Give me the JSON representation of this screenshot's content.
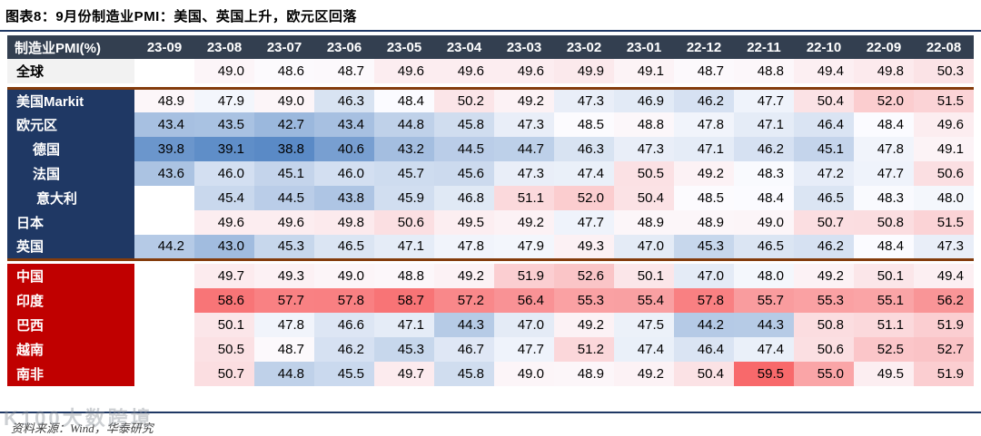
{
  "title": "图表8：9月份制造业PMI：美国、英国上升，欧元区回落",
  "footer": {
    "source_text": "资料来源：Wind，华泰研究",
    "watermark": "K100大数跨境"
  },
  "colors": {
    "header_bg": "#333F50",
    "developed_label_bg": "#1F3864",
    "emerging_label_bg": "#C00000",
    "global_label_bg": "#F2F2F2",
    "separator_line": "#843C0C",
    "rule_line": "#1F3864",
    "scale_low": "#5A8AC6",
    "scale_mid": "#FCFCFF",
    "scale_high": "#F8696B"
  },
  "chart_data": {
    "type": "heatmap",
    "title": "图表8：9月份制造业PMI：美国、英国上升，欧元区回落",
    "corner_label": "制造业PMI(%)",
    "columns": [
      "23-09",
      "23-08",
      "23-07",
      "23-06",
      "23-05",
      "23-04",
      "23-03",
      "23-02",
      "23-01",
      "22-12",
      "22-11",
      "22-10",
      "22-09",
      "22-08"
    ],
    "color_scale": {
      "min": 38.8,
      "mid": 48.45,
      "max": 59.5,
      "low": "#5A8AC6",
      "mid_color": "#FCFCFF",
      "high": "#F8696B"
    },
    "rows": [
      {
        "label": "全球",
        "group": "global",
        "indent": 0,
        "values": [
          null,
          49.0,
          48.6,
          48.7,
          49.6,
          49.6,
          49.6,
          49.9,
          49.1,
          48.7,
          48.8,
          49.4,
          49.8,
          50.3
        ]
      },
      {
        "label": "美国Markit",
        "group": "developed",
        "indent": 0,
        "values": [
          48.9,
          47.9,
          49.0,
          46.3,
          48.4,
          50.2,
          49.2,
          47.3,
          46.9,
          46.2,
          47.7,
          50.4,
          52.0,
          51.5
        ]
      },
      {
        "label": "欧元区",
        "group": "developed",
        "indent": 0,
        "values": [
          43.4,
          43.5,
          42.7,
          43.4,
          44.8,
          45.8,
          47.3,
          48.5,
          48.8,
          47.8,
          47.1,
          46.4,
          48.4,
          49.6
        ]
      },
      {
        "label": "德国",
        "group": "developed",
        "indent": 1,
        "values": [
          39.8,
          39.1,
          38.8,
          40.6,
          43.2,
          44.5,
          44.7,
          46.3,
          47.3,
          47.1,
          46.2,
          45.1,
          47.8,
          49.1
        ]
      },
      {
        "label": "法国",
        "group": "developed",
        "indent": 1,
        "values": [
          43.6,
          46.0,
          45.1,
          46.0,
          45.7,
          45.6,
          47.3,
          47.4,
          50.5,
          49.2,
          48.3,
          47.2,
          47.7,
          50.6
        ]
      },
      {
        "label": "意大利",
        "group": "developed",
        "indent": 2,
        "values": [
          null,
          45.4,
          44.5,
          43.8,
          45.9,
          46.8,
          51.1,
          52.0,
          50.4,
          48.5,
          48.4,
          46.5,
          48.3,
          48.0
        ]
      },
      {
        "label": "日本",
        "group": "developed",
        "indent": 0,
        "values": [
          null,
          49.6,
          49.6,
          49.8,
          50.6,
          49.5,
          49.2,
          47.7,
          48.9,
          48.9,
          49.0,
          50.7,
          50.8,
          51.5
        ]
      },
      {
        "label": "英国",
        "group": "developed",
        "indent": 0,
        "values": [
          44.2,
          43.0,
          45.3,
          46.5,
          47.1,
          47.8,
          47.9,
          49.3,
          47.0,
          45.3,
          46.5,
          46.2,
          48.4,
          47.3
        ]
      },
      {
        "label": "中国",
        "group": "emerging",
        "indent": 0,
        "values": [
          null,
          49.7,
          49.3,
          49.0,
          48.8,
          49.2,
          51.9,
          52.6,
          50.1,
          47.0,
          48.0,
          49.2,
          50.1,
          49.4
        ]
      },
      {
        "label": "印度",
        "group": "emerging",
        "indent": 0,
        "values": [
          null,
          58.6,
          57.7,
          57.8,
          58.7,
          57.2,
          56.4,
          55.3,
          55.4,
          57.8,
          55.7,
          55.3,
          55.1,
          56.2
        ]
      },
      {
        "label": "巴西",
        "group": "emerging",
        "indent": 0,
        "values": [
          null,
          50.1,
          47.8,
          46.6,
          47.1,
          44.3,
          47.0,
          49.2,
          47.5,
          44.2,
          44.3,
          50.8,
          51.1,
          51.9
        ]
      },
      {
        "label": "越南",
        "group": "emerging",
        "indent": 0,
        "values": [
          null,
          50.5,
          48.7,
          46.2,
          45.3,
          46.7,
          47.7,
          51.2,
          47.4,
          46.4,
          47.4,
          50.6,
          52.5,
          52.7
        ]
      },
      {
        "label": "南非",
        "group": "emerging",
        "indent": 0,
        "values": [
          null,
          50.7,
          44.8,
          45.5,
          49.7,
          45.8,
          49.0,
          48.9,
          49.2,
          50.4,
          59.5,
          55.0,
          49.5,
          51.9
        ]
      }
    ]
  }
}
